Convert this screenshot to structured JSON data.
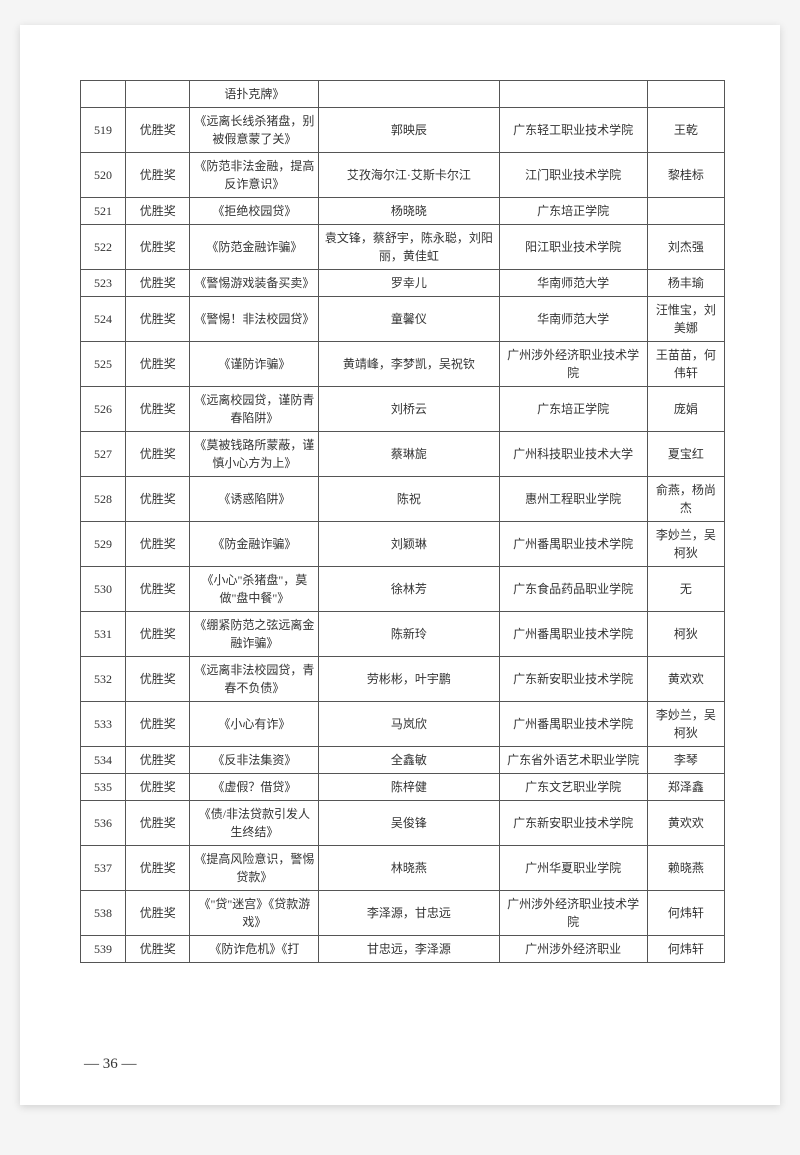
{
  "page_number": "— 36 —",
  "columns": {
    "num": "",
    "award": "",
    "title": "",
    "author": "",
    "school": "",
    "teacher": ""
  },
  "table_styling": {
    "border_color": "#555555",
    "text_color": "#333333",
    "font_size": 12,
    "font_family": "SimSun",
    "background_color": "#ffffff"
  },
  "rows": [
    {
      "num": "",
      "award": "",
      "title": "语扑克牌》",
      "author": "",
      "school": "",
      "teacher": ""
    },
    {
      "num": "519",
      "award": "优胜奖",
      "title": "《远离长线杀猪盘，别被假意蒙了关》",
      "author": "郭映辰",
      "school": "广东轻工职业技术学院",
      "teacher": "王乾"
    },
    {
      "num": "520",
      "award": "优胜奖",
      "title": "《防范非法金融，提高反诈意识》",
      "author": "艾孜海尔江·艾斯卡尔江",
      "school": "江门职业技术学院",
      "teacher": "黎桂标"
    },
    {
      "num": "521",
      "award": "优胜奖",
      "title": "《拒绝校园贷》",
      "author": "杨晓晓",
      "school": "广东培正学院",
      "teacher": ""
    },
    {
      "num": "522",
      "award": "优胜奖",
      "title": "《防范金融诈骗》",
      "author": "袁文锋，蔡舒宇，陈永聪，刘阳丽，黄佳虹",
      "school": "阳江职业技术学院",
      "teacher": "刘杰强"
    },
    {
      "num": "523",
      "award": "优胜奖",
      "title": "《警惕游戏装备买卖》",
      "author": "罗幸儿",
      "school": "华南师范大学",
      "teacher": "杨丰瑜"
    },
    {
      "num": "524",
      "award": "优胜奖",
      "title": "《警惕！非法校园贷》",
      "author": "童馨仪",
      "school": "华南师范大学",
      "teacher": "汪惟宝，刘美娜"
    },
    {
      "num": "525",
      "award": "优胜奖",
      "title": "《谨防诈骗》",
      "author": "黄靖峰，李梦凯，吴祝钦",
      "school": "广州涉外经济职业技术学院",
      "teacher": "王苗苗，何伟轩"
    },
    {
      "num": "526",
      "award": "优胜奖",
      "title": "《远离校园贷，谨防青春陷阱》",
      "author": "刘桥云",
      "school": "广东培正学院",
      "teacher": "庞娟"
    },
    {
      "num": "527",
      "award": "优胜奖",
      "title": "《莫被钱路所蒙蔽，谨慎小心方为上》",
      "author": "蔡琳旎",
      "school": "广州科技职业技术大学",
      "teacher": "夏宝红"
    },
    {
      "num": "528",
      "award": "优胜奖",
      "title": "《诱惑陷阱》",
      "author": "陈祝",
      "school": "惠州工程职业学院",
      "teacher": "俞燕，杨尚杰"
    },
    {
      "num": "529",
      "award": "优胜奖",
      "title": "《防金融诈骗》",
      "author": "刘颖琳",
      "school": "广州番禺职业技术学院",
      "teacher": "李妙兰，吴柯狄"
    },
    {
      "num": "530",
      "award": "优胜奖",
      "title": "《小心\"杀猪盘\"，莫做\"盘中餐\"》",
      "author": "徐林芳",
      "school": "广东食品药品职业学院",
      "teacher": "无"
    },
    {
      "num": "531",
      "award": "优胜奖",
      "title": "《绷紧防范之弦远离金融诈骗》",
      "author": "陈新玲",
      "school": "广州番禺职业技术学院",
      "teacher": "柯狄"
    },
    {
      "num": "532",
      "award": "优胜奖",
      "title": "《远离非法校园贷，青春不负债》",
      "author": "劳彬彬，叶宇鹏",
      "school": "广东新安职业技术学院",
      "teacher": "黄欢欢"
    },
    {
      "num": "533",
      "award": "优胜奖",
      "title": "《小心有诈》",
      "author": "马岚欣",
      "school": "广州番禺职业技术学院",
      "teacher": "李妙兰，吴柯狄"
    },
    {
      "num": "534",
      "award": "优胜奖",
      "title": "《反非法集资》",
      "author": "全鑫敏",
      "school": "广东省外语艺术职业学院",
      "teacher": "李琴"
    },
    {
      "num": "535",
      "award": "优胜奖",
      "title": "《虚假？借贷》",
      "author": "陈梓健",
      "school": "广东文艺职业学院",
      "teacher": "郑泽鑫"
    },
    {
      "num": "536",
      "award": "优胜奖",
      "title": "《债/非法贷款引发人生终结》",
      "author": "吴俊锋",
      "school": "广东新安职业技术学院",
      "teacher": "黄欢欢"
    },
    {
      "num": "537",
      "award": "优胜奖",
      "title": "《提高风险意识，警惕贷款》",
      "author": "林晓燕",
      "school": "广州华夏职业学院",
      "teacher": "赖晓燕"
    },
    {
      "num": "538",
      "award": "优胜奖",
      "title": "《\"贷\"迷宫》《贷款游戏》",
      "author": "李泽源，甘忠远",
      "school": "广州涉外经济职业技术学院",
      "teacher": "何炜轩"
    },
    {
      "num": "539",
      "award": "优胜奖",
      "title": "《防诈危机》《打",
      "author": "甘忠远，李泽源",
      "school": "广州涉外经济职业",
      "teacher": "何炜轩"
    }
  ]
}
